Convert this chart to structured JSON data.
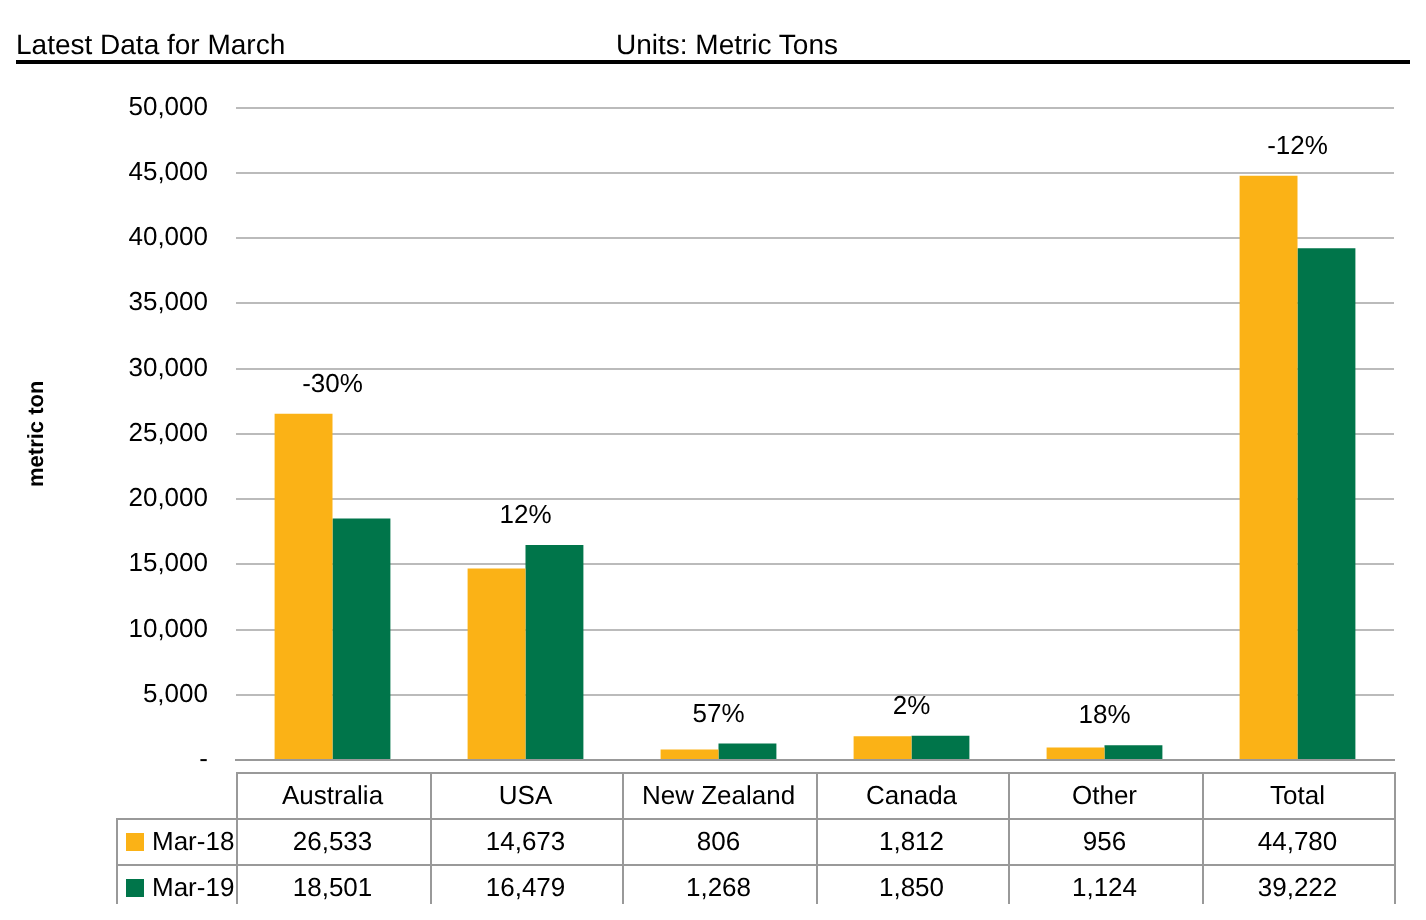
{
  "chart_data": {
    "type": "bar",
    "title": "Latest Data for March",
    "ylabel": "metric ton",
    "categories": [
      "Australia",
      "USA",
      "New Zealand",
      "Canada",
      "Other",
      "Total"
    ],
    "series": [
      {
        "name": "Mar-18",
        "color": "#fbb216",
        "values": [
          26533,
          14673,
          806,
          1812,
          956,
          44780
        ],
        "value_labels": [
          "26,533",
          "14,673",
          "806",
          "1,812",
          "956",
          "44,780"
        ]
      },
      {
        "name": "Mar-19",
        "color": "#00754a",
        "values": [
          18501,
          16479,
          1268,
          1850,
          1124,
          39222
        ],
        "value_labels": [
          "18,501",
          "16,479",
          "1,268",
          "1,850",
          "1,124",
          "39,222"
        ]
      }
    ],
    "ylim": [
      0,
      50000
    ],
    "yticks": [
      {
        "value": 0,
        "label": "-"
      },
      {
        "value": 5000,
        "label": "5,000"
      },
      {
        "value": 10000,
        "label": "10,000"
      },
      {
        "value": 15000,
        "label": "15,000"
      },
      {
        "value": 20000,
        "label": "20,000"
      },
      {
        "value": 25000,
        "label": "25,000"
      },
      {
        "value": 30000,
        "label": "30,000"
      },
      {
        "value": 35000,
        "label": "35,000"
      },
      {
        "value": 40000,
        "label": "40,000"
      },
      {
        "value": 45000,
        "label": "45,000"
      },
      {
        "value": 50000,
        "label": "50,000"
      }
    ],
    "grid": "y",
    "legend": "bottom",
    "annotations": [
      "Units: Metric Tons",
      "-30%",
      "12%",
      "57%",
      "2%",
      "18%",
      "-12%"
    ]
  }
}
